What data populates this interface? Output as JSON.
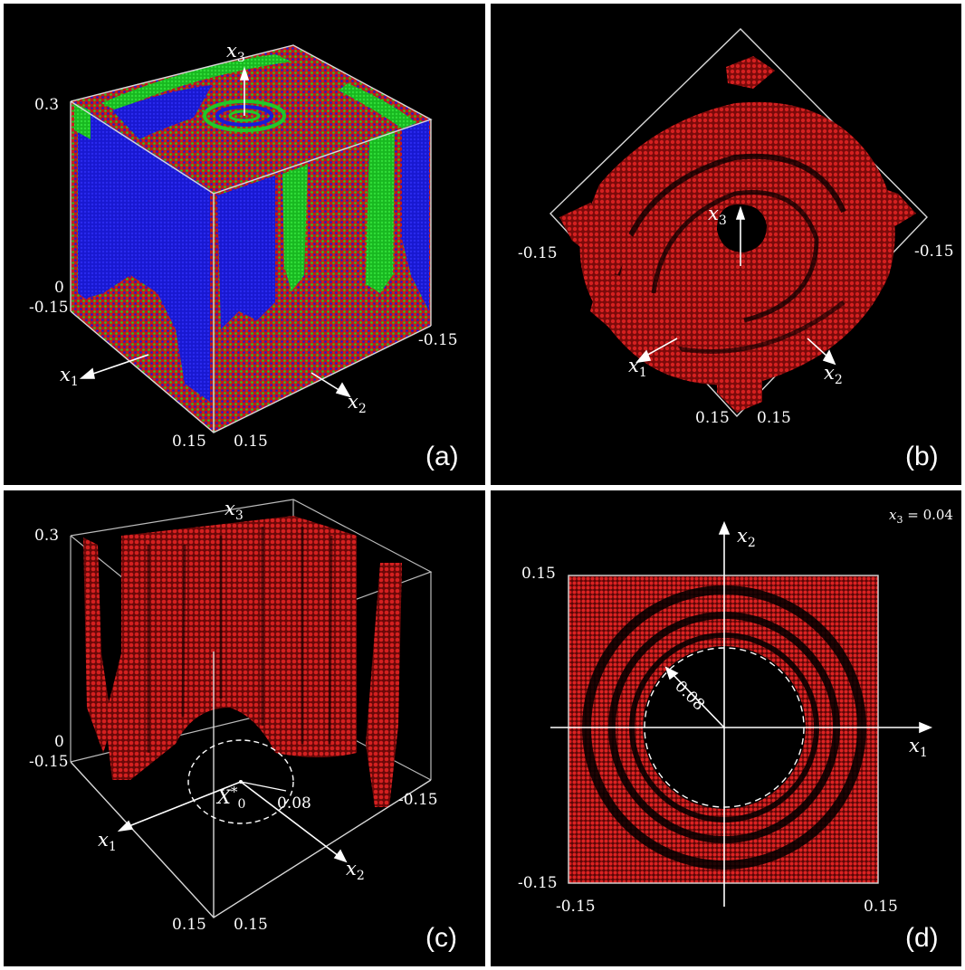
{
  "panels": {
    "a": {
      "label": "(a)",
      "axis_x1": "x",
      "axis_x1_sub": "1",
      "axis_x2": "x",
      "axis_x2_sub": "2",
      "axis_x3": "x",
      "axis_x3_sub": "3",
      "tick_03": "0.3",
      "tick_0": "0",
      "tick_m015_left": "-0.15",
      "tick_m015_right": "-0.15",
      "tick_015_a": "0.15",
      "tick_015_b": "0.15"
    },
    "b": {
      "label": "(b)",
      "axis_x1": "x",
      "axis_x1_sub": "1",
      "axis_x2": "x",
      "axis_x2_sub": "2",
      "axis_x3": "x",
      "axis_x3_sub": "3",
      "tick_m015_left": "-0.15",
      "tick_m015_right": "-0.15",
      "tick_015_a": "0.15",
      "tick_015_b": "0.15"
    },
    "c": {
      "label": "(c)",
      "axis_x1": "x",
      "axis_x1_sub": "1",
      "axis_x2": "x",
      "axis_x2_sub": "2",
      "axis_x3": "x",
      "axis_x3_sub": "3",
      "tick_03": "0.3",
      "tick_0": "0",
      "tick_m015_left": "-0.15",
      "tick_m015_right": "-0.15",
      "tick_015_a": "0.15",
      "tick_015_b": "0.15",
      "point_label": "X",
      "point_sup": "*",
      "point_sub": "0",
      "radius_label": "0.08"
    },
    "d": {
      "label": "(d)",
      "axis_x1": "x",
      "axis_x1_sub": "1",
      "axis_x2": "x",
      "axis_x2_sub": "2",
      "slice_var": "x",
      "slice_sub": "3",
      "slice_eq": " = 0.04",
      "tick_y_top": "0.15",
      "tick_y_bottom": "-0.15",
      "tick_x_left": "-0.15",
      "tick_x_right": "0.15",
      "radius_label": "0.08"
    }
  },
  "colors": {
    "basin_blue": "#1a1ad6",
    "basin_green": "#20c828",
    "basin_red": "#d42020",
    "background": "#000000",
    "frame": "#d8d8d8"
  }
}
